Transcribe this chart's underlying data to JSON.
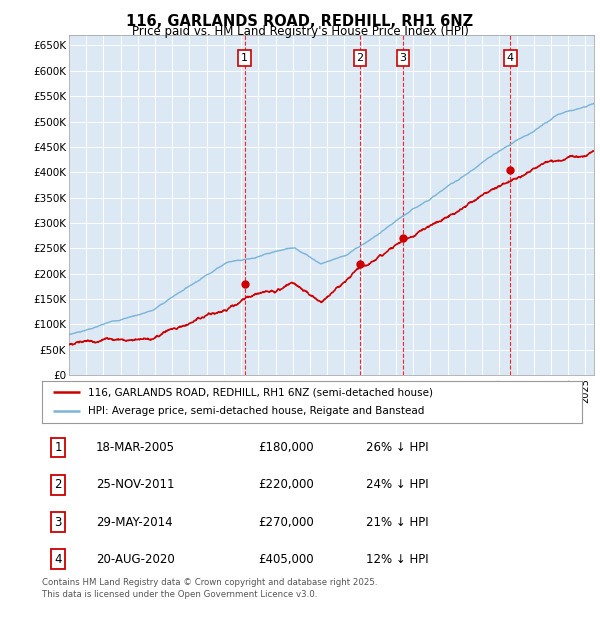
{
  "title_line1": "116, GARLANDS ROAD, REDHILL, RH1 6NZ",
  "title_line2": "Price paid vs. HM Land Registry's House Price Index (HPI)",
  "plot_bg_color": "#dce9f5",
  "grid_color": "#c8d8e8",
  "ylim": [
    0,
    670000
  ],
  "yticks": [
    0,
    50000,
    100000,
    150000,
    200000,
    250000,
    300000,
    350000,
    400000,
    450000,
    500000,
    550000,
    600000,
    650000
  ],
  "ytick_labels": [
    "£0",
    "£50K",
    "£100K",
    "£150K",
    "£200K",
    "£250K",
    "£300K",
    "£350K",
    "£400K",
    "£450K",
    "£500K",
    "£550K",
    "£600K",
    "£650K"
  ],
  "hpi_color": "#7ab4d8",
  "price_color": "#cc0000",
  "sale_dates": [
    2005.21,
    2011.9,
    2014.41,
    2020.63
  ],
  "sale_prices": [
    180000,
    220000,
    270000,
    405000
  ],
  "sale_labels": [
    "1",
    "2",
    "3",
    "4"
  ],
  "sale_hpi_pct": [
    "26% ↓ HPI",
    "24% ↓ HPI",
    "21% ↓ HPI",
    "12% ↓ HPI"
  ],
  "sale_date_strs": [
    "18-MAR-2005",
    "25-NOV-2011",
    "29-MAY-2014",
    "20-AUG-2020"
  ],
  "sale_price_strs": [
    "£180,000",
    "£220,000",
    "£270,000",
    "£405,000"
  ],
  "legend_label_red": "116, GARLANDS ROAD, REDHILL, RH1 6NZ (semi-detached house)",
  "legend_label_blue": "HPI: Average price, semi-detached house, Reigate and Banstead",
  "footnote": "Contains HM Land Registry data © Crown copyright and database right 2025.\nThis data is licensed under the Open Government Licence v3.0.",
  "xmin": 1995.0,
  "xmax": 2025.5
}
